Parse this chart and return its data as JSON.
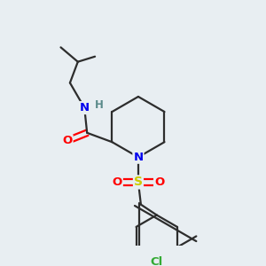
{
  "background_color": "#e8eef2",
  "bond_color": "#2d2d2d",
  "atom_colors": {
    "N": "#0000ee",
    "O": "#ff0000",
    "S": "#cccc00",
    "Cl": "#33aa33",
    "H": "#5a8a8a",
    "C": "#2d2d2d"
  },
  "figsize": [
    3.0,
    3.0
  ],
  "dpi": 100
}
